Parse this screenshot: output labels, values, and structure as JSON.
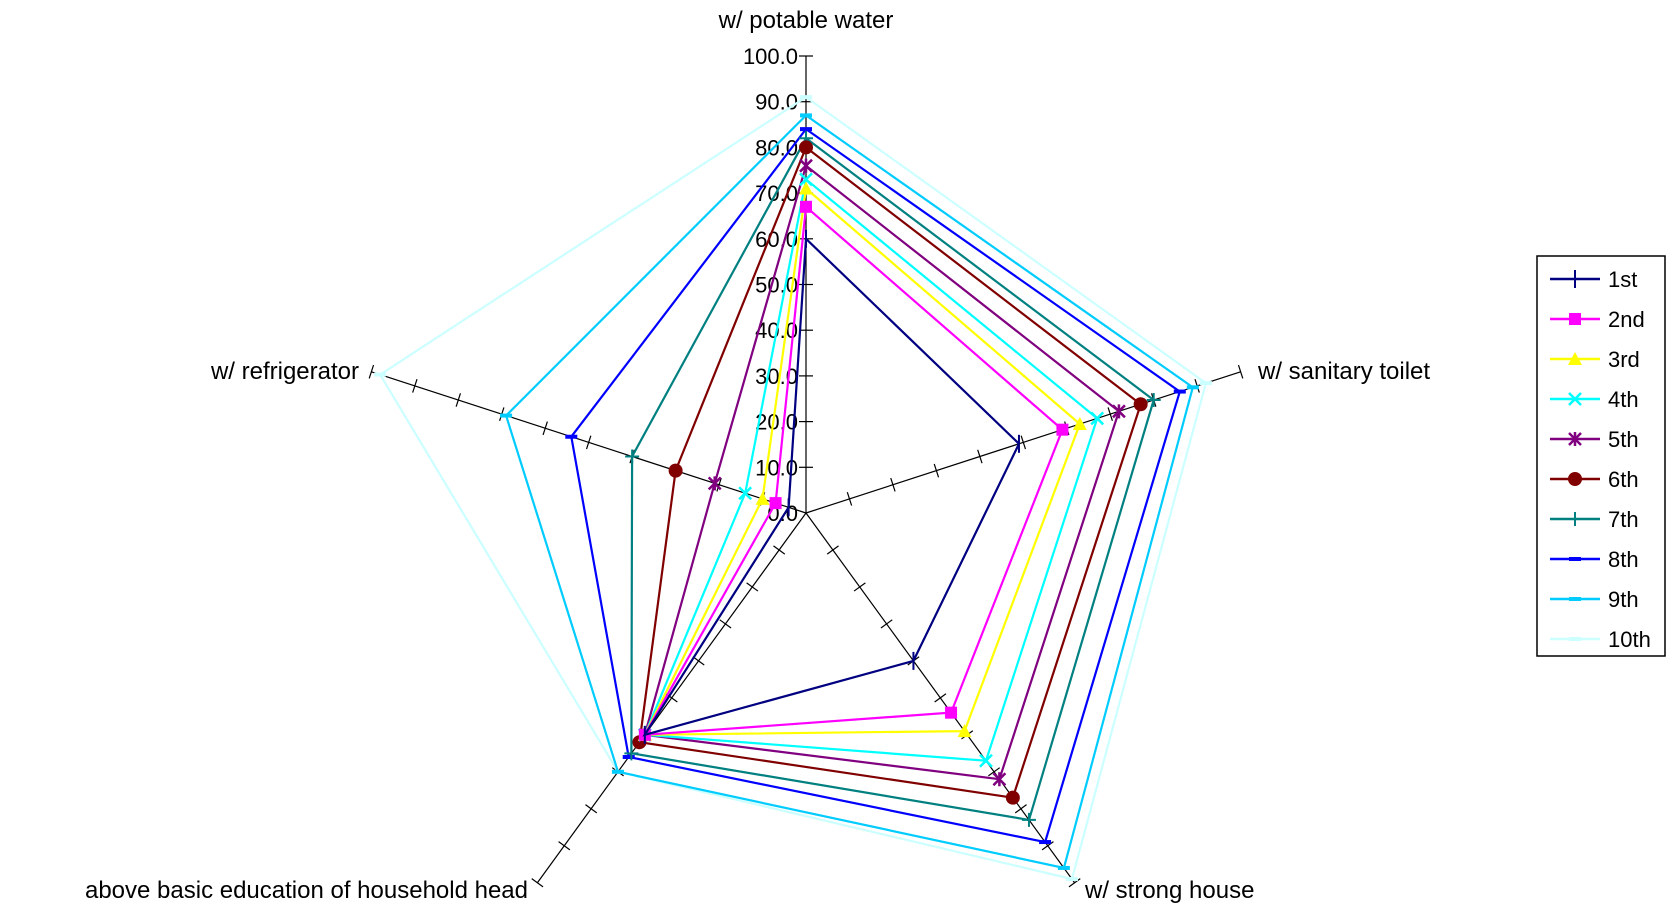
{
  "chart_data": {
    "type": "radar",
    "axes": [
      "w/ potable water",
      "w/ sanitary toilet",
      "w/ strong house",
      "above basic education of household head",
      "w/ refrigerator"
    ],
    "rmax": 100,
    "tick_labels": [
      "0.0",
      "10.0",
      "20.0",
      "30.0",
      "40.0",
      "50.0",
      "60.0",
      "70.0",
      "80.0",
      "90.0",
      "100.0"
    ],
    "grid": false,
    "legend_position": "right",
    "series": [
      {
        "name": "1st",
        "color": "#000080",
        "marker": "plus-v",
        "values": [
          60,
          49,
          40,
          60,
          4
        ]
      },
      {
        "name": "2nd",
        "color": "#FF00FF",
        "marker": "square",
        "values": [
          67,
          59,
          54,
          60,
          7
        ]
      },
      {
        "name": "3rd",
        "color": "#FFFF00",
        "marker": "triangle",
        "values": [
          71,
          63,
          59,
          60,
          10
        ]
      },
      {
        "name": "4th",
        "color": "#00FFFF",
        "marker": "x",
        "values": [
          73,
          67,
          67,
          60,
          14
        ]
      },
      {
        "name": "5th",
        "color": "#800080",
        "marker": "asterisk",
        "values": [
          76,
          72,
          72,
          60,
          21
        ]
      },
      {
        "name": "6th",
        "color": "#800000",
        "marker": "circle",
        "values": [
          80,
          77,
          77,
          62,
          30
        ]
      },
      {
        "name": "7th",
        "color": "#008080",
        "marker": "plus",
        "values": [
          82,
          80,
          83,
          65,
          40
        ]
      },
      {
        "name": "8th",
        "color": "#0000FF",
        "marker": "dash",
        "values": [
          84,
          86,
          89,
          66,
          54
        ]
      },
      {
        "name": "9th",
        "color": "#00CCFF",
        "marker": "dash",
        "values": [
          87,
          89,
          96,
          70,
          69
        ]
      },
      {
        "name": "10th",
        "color": "#CCFFFF",
        "marker": "dash",
        "values": [
          91,
          92,
          99,
          70,
          98
        ]
      }
    ]
  }
}
